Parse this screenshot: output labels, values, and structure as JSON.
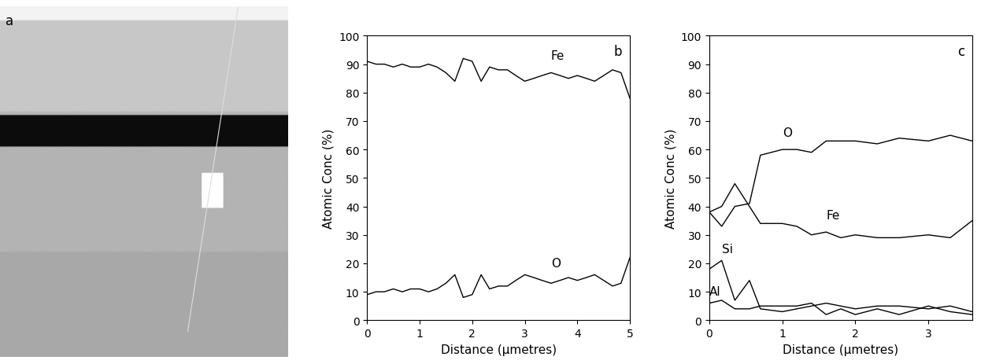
{
  "image_panel": {
    "label": "a"
  },
  "chart_data": [
    {
      "type": "line",
      "panel_label": "b",
      "x_label": "Distance (μmetres)",
      "y_label": "Atomic Conc (%)",
      "xlim": [
        0,
        5
      ],
      "xticks": [
        0,
        1,
        2,
        3,
        4,
        5
      ],
      "ylim": [
        0,
        100
      ],
      "yticks": [
        0,
        10,
        20,
        30,
        40,
        50,
        60,
        70,
        80,
        90,
        100
      ],
      "x": [
        0,
        0.17,
        0.33,
        0.5,
        0.67,
        0.83,
        1.0,
        1.17,
        1.33,
        1.5,
        1.67,
        1.83,
        2.0,
        2.17,
        2.33,
        2.5,
        2.67,
        2.83,
        3.0,
        3.17,
        3.33,
        3.5,
        3.67,
        3.83,
        4.0,
        4.17,
        4.33,
        4.5,
        4.67,
        4.83,
        5.0
      ],
      "series": [
        {
          "name": "Fe",
          "color": "#000000",
          "values": [
            91,
            90,
            90,
            89,
            90,
            89,
            89,
            90,
            89,
            87,
            84,
            92,
            91,
            84,
            89,
            88,
            88,
            86,
            84,
            85,
            86,
            87,
            86,
            85,
            86,
            85,
            84,
            86,
            88,
            87,
            78
          ]
        },
        {
          "name": "O",
          "color": "#000000",
          "values": [
            9,
            10,
            10,
            11,
            10,
            11,
            11,
            10,
            11,
            13,
            16,
            8,
            9,
            16,
            11,
            12,
            12,
            14,
            16,
            15,
            14,
            13,
            14,
            15,
            14,
            15,
            16,
            14,
            12,
            13,
            22
          ]
        }
      ]
    },
    {
      "type": "line",
      "panel_label": "c",
      "x_label": "Distance (μmetres)",
      "y_label": "Atomic Conc (%)",
      "xlim": [
        0,
        3.6
      ],
      "xticks": [
        0,
        1,
        2,
        3
      ],
      "ylim": [
        0,
        100
      ],
      "yticks": [
        0,
        10,
        20,
        30,
        40,
        50,
        60,
        70,
        80,
        90,
        100
      ],
      "x": [
        0,
        0.17,
        0.35,
        0.55,
        0.7,
        1.0,
        1.2,
        1.4,
        1.6,
        1.8,
        2.0,
        2.3,
        2.6,
        3.0,
        3.3,
        3.6
      ],
      "series": [
        {
          "name": "O",
          "color": "#000000",
          "values": [
            38,
            33,
            40,
            41,
            58,
            60,
            60,
            59,
            63,
            63,
            63,
            62,
            64,
            63,
            65,
            63
          ]
        },
        {
          "name": "Fe",
          "color": "#000000",
          "values": [
            38,
            40,
            48,
            40,
            34,
            34,
            33,
            30,
            31,
            29,
            30,
            29,
            29,
            30,
            29,
            35
          ]
        },
        {
          "name": "Si",
          "color": "#000000",
          "values": [
            18,
            21,
            7,
            14,
            4,
            3,
            4,
            5,
            6,
            5,
            4,
            5,
            5,
            4,
            5,
            3
          ]
        },
        {
          "name": "Al",
          "color": "#000000",
          "values": [
            6,
            7,
            4,
            4,
            5,
            5,
            5,
            6,
            2,
            4,
            2,
            4,
            2,
            5,
            3,
            2
          ]
        }
      ]
    }
  ]
}
